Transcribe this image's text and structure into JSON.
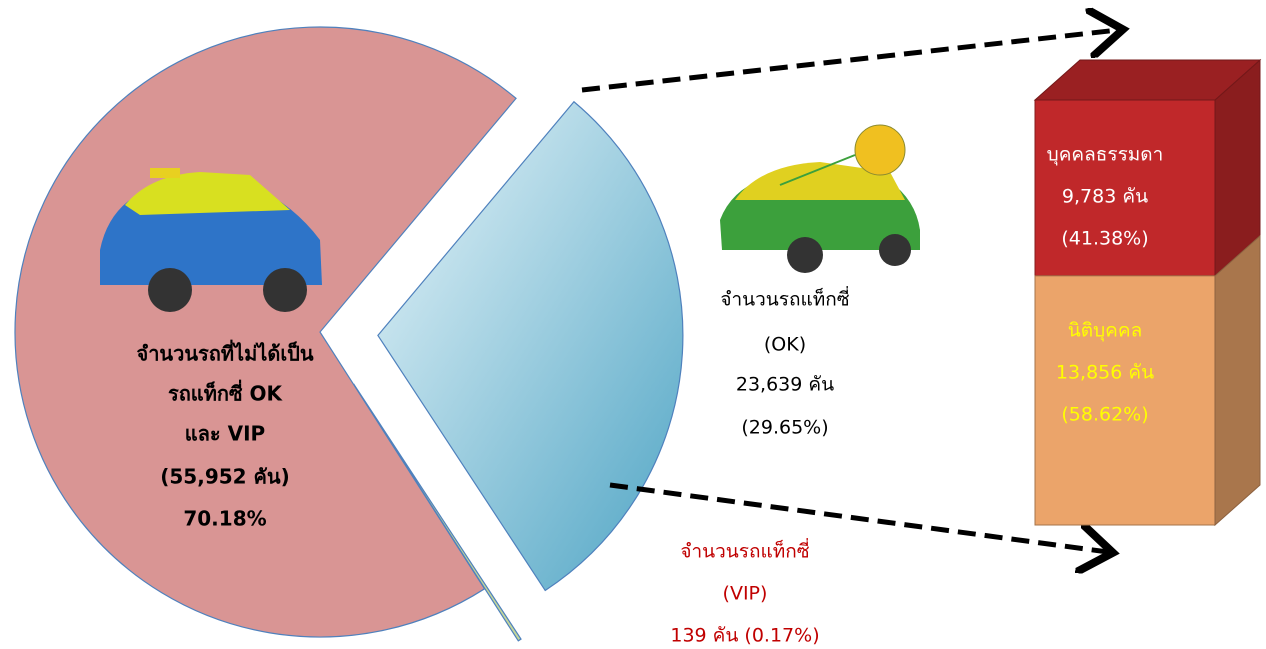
{
  "chart_data": [
    {
      "type": "pie",
      "categories": [
        [
          "จำนวนรถที่ไม่ได้เป็น",
          "รถแท็กซี่ OK",
          "และ VIP"
        ],
        [
          "จำนวนรถแท็กซี่",
          "(OK)"
        ],
        [
          "จำนวนรถแท็กซี่",
          "(VIP)"
        ]
      ],
      "values": [
        70.18,
        29.65,
        0.17
      ],
      "value_labels": [
        [
          "(55,952 คัน)",
          "70.18%"
        ],
        [
          "23,639 คัน",
          "(29.65%)"
        ],
        [
          "139 คัน (0.17%)"
        ]
      ],
      "colors": [
        "#d99594",
        "#7fc3d8",
        "#c3d69b"
      ]
    },
    {
      "type": "bar",
      "series": [
        {
          "name": "บุคคลธรรมดา",
          "color": "#c0282a",
          "values": [
            41.38
          ],
          "value_labels": [
            [
              "9,783 คัน",
              "(41.38%)"
            ]
          ]
        },
        {
          "name": "นิติบุคคล",
          "color": "#eba46a",
          "values": [
            58.62
          ],
          "value_labels": [
            [
              "13,856 คัน",
              "(58.62%)"
            ]
          ]
        }
      ]
    }
  ]
}
